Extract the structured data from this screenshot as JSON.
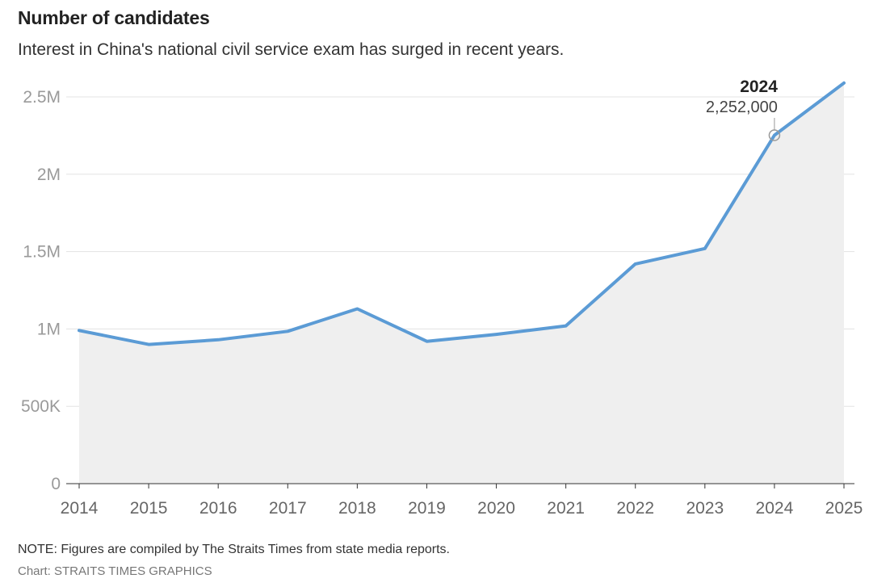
{
  "header": {
    "title": "Number of candidates",
    "subtitle": "Interest in China's national civil service exam has surged in recent years."
  },
  "footer": {
    "note": "NOTE: Figures are compiled by The Straits Times from state media reports.",
    "source": "Chart: STRAITS TIMES GRAPHICS"
  },
  "colors": {
    "line": "#5b9bd5",
    "area": "#efefef",
    "grid": "#e3e3e3",
    "axis": "#333333"
  },
  "chart_data": {
    "type": "area",
    "x": [
      "2014",
      "2015",
      "2016",
      "2017",
      "2018",
      "2019",
      "2020",
      "2021",
      "2022",
      "2023",
      "2024",
      "2025"
    ],
    "series": [
      {
        "values": [
          990000,
          900000,
          930000,
          985000,
          1130000,
          920000,
          965000,
          1020000,
          1420000,
          1520000,
          2252000,
          2590000
        ]
      }
    ],
    "ylim": [
      0,
      2500000
    ],
    "yticks": [
      {
        "value": 0,
        "label": "0"
      },
      {
        "value": 500000,
        "label": "500K"
      },
      {
        "value": 1000000,
        "label": "1M"
      },
      {
        "value": 1500000,
        "label": "1.5M"
      },
      {
        "value": 2000000,
        "label": "2M"
      },
      {
        "value": 2500000,
        "label": "2.5M"
      }
    ],
    "grid": true,
    "annotation": {
      "x": "2024",
      "year_label": "2024",
      "value_label": "2,252,000",
      "value": 2252000
    }
  }
}
